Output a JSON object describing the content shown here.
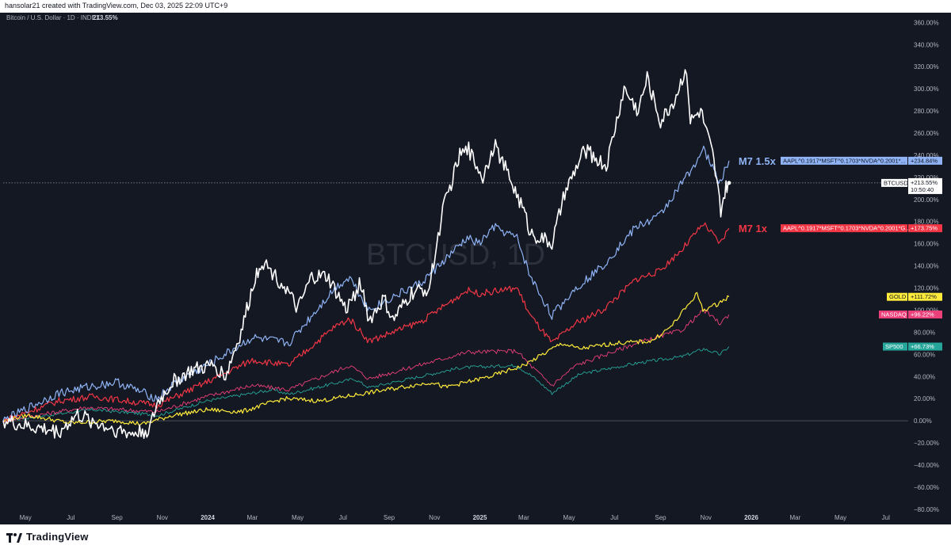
{
  "header": {
    "text": "hansolar21 created with TradingView.com, Dec 03, 2025 22:09 UTC+9"
  },
  "footer": {
    "brand": "TradingView"
  },
  "chart_data": {
    "type": "line",
    "symbol_label": "Bitcoin / U.S. Dollar · 1D · INDEX",
    "symbol_value": "213.55%",
    "watermark": "BTCUSD, 1D",
    "x_ticks": [
      "May",
      "Jul",
      "Sep",
      "Nov",
      "2024",
      "Mar",
      "May",
      "Jul",
      "Sep",
      "Nov",
      "2025",
      "Mar",
      "May",
      "Jul",
      "Sep",
      "Nov",
      "2026",
      "Mar",
      "May",
      "Jul"
    ],
    "y_ticks": [
      "360.00%",
      "340.00%",
      "320.00%",
      "300.00%",
      "280.00%",
      "260.00%",
      "240.00%",
      "220.00%",
      "200.00%",
      "180.00%",
      "160.00%",
      "140.00%",
      "120.00%",
      "100.00%",
      "80.00%",
      "60.00%",
      "40.00%",
      "20.00%",
      "0.00%",
      "−20.00%",
      "−40.00%",
      "−60.00%",
      "−80.00%"
    ],
    "y_range": [
      -88,
      366
    ],
    "x_range": [
      "2023-04-01",
      "2026-07-31"
    ],
    "ylabel": "",
    "grid": false,
    "series": [
      {
        "name": "BTCUSD",
        "color": "#ffffff",
        "value_label": "+213.55%",
        "extra_label": "10:50:40",
        "points": [
          [
            "2023-04-01",
            0
          ],
          [
            "2023-05-01",
            -5
          ],
          [
            "2023-06-15",
            -10
          ],
          [
            "2023-07-10",
            5
          ],
          [
            "2023-08-15",
            -5
          ],
          [
            "2023-09-20",
            -12
          ],
          [
            "2023-10-15",
            -8
          ],
          [
            "2023-10-25",
            15
          ],
          [
            "2023-11-15",
            35
          ],
          [
            "2023-12-10",
            45
          ],
          [
            "2024-01-10",
            50
          ],
          [
            "2024-01-25",
            40
          ],
          [
            "2024-02-15",
            80
          ],
          [
            "2024-03-05",
            130
          ],
          [
            "2024-03-14",
            145
          ],
          [
            "2024-04-15",
            120
          ],
          [
            "2024-05-01",
            100
          ],
          [
            "2024-05-20",
            130
          ],
          [
            "2024-06-10",
            130
          ],
          [
            "2024-07-05",
            100
          ],
          [
            "2024-07-25",
            125
          ],
          [
            "2024-08-05",
            90
          ],
          [
            "2024-08-25",
            110
          ],
          [
            "2024-09-06",
            90
          ],
          [
            "2024-10-01",
            115
          ],
          [
            "2024-10-25",
            120
          ],
          [
            "2024-11-12",
            190
          ],
          [
            "2024-12-05",
            240
          ],
          [
            "2024-12-17",
            245
          ],
          [
            "2025-01-05",
            220
          ],
          [
            "2025-01-20",
            250
          ],
          [
            "2025-02-10",
            220
          ],
          [
            "2025-03-01",
            190
          ],
          [
            "2025-03-10",
            170
          ],
          [
            "2025-04-08",
            160
          ],
          [
            "2025-04-25",
            205
          ],
          [
            "2025-05-22",
            245
          ],
          [
            "2025-06-20",
            230
          ],
          [
            "2025-07-14",
            300
          ],
          [
            "2025-08-02",
            280
          ],
          [
            "2025-08-14",
            310
          ],
          [
            "2025-09-01",
            270
          ],
          [
            "2025-09-20",
            290
          ],
          [
            "2025-10-06",
            320
          ],
          [
            "2025-10-11",
            270
          ],
          [
            "2025-10-25",
            280
          ],
          [
            "2025-11-10",
            240
          ],
          [
            "2025-11-21",
            190
          ],
          [
            "2025-11-28",
            210
          ],
          [
            "2025-12-02",
            215
          ]
        ]
      },
      {
        "name": "M7 1.5x",
        "color": "#8fb3f5",
        "value_label": "+234.84%",
        "ticker": "AAPL^0.1917*MSFT^0.1703*NVDA^0.2001*...",
        "points": [
          [
            "2023-04-01",
            0
          ],
          [
            "2023-05-15",
            15
          ],
          [
            "2023-06-15",
            25
          ],
          [
            "2023-07-20",
            30
          ],
          [
            "2023-09-01",
            35
          ],
          [
            "2023-10-25",
            20
          ],
          [
            "2023-11-20",
            35
          ],
          [
            "2023-12-31",
            50
          ],
          [
            "2024-03-01",
            75
          ],
          [
            "2024-04-19",
            70
          ],
          [
            "2024-06-20",
            120
          ],
          [
            "2024-07-10",
            130
          ],
          [
            "2024-08-05",
            100
          ],
          [
            "2024-09-01",
            110
          ],
          [
            "2024-10-15",
            125
          ],
          [
            "2024-12-15",
            165
          ],
          [
            "2024-12-31",
            160
          ],
          [
            "2025-01-20",
            175
          ],
          [
            "2025-02-20",
            165
          ],
          [
            "2025-03-10",
            130
          ],
          [
            "2025-04-08",
            95
          ],
          [
            "2025-05-10",
            120
          ],
          [
            "2025-06-15",
            140
          ],
          [
            "2025-07-30",
            175
          ],
          [
            "2025-08-30",
            185
          ],
          [
            "2025-09-30",
            215
          ],
          [
            "2025-10-29",
            245
          ],
          [
            "2025-11-20",
            215
          ],
          [
            "2025-12-02",
            235
          ]
        ]
      },
      {
        "name": "M7 1x",
        "color": "#f23645",
        "value_label": "+173.75%",
        "ticker": "AAPL^0.1917*MSFT^0.1703*NVDA^0.2001*G...",
        "points": [
          [
            "2023-04-01",
            0
          ],
          [
            "2023-06-15",
            18
          ],
          [
            "2023-08-01",
            22
          ],
          [
            "2023-10-25",
            14
          ],
          [
            "2023-12-31",
            35
          ],
          [
            "2024-03-01",
            55
          ],
          [
            "2024-04-19",
            50
          ],
          [
            "2024-06-20",
            85
          ],
          [
            "2024-07-10",
            92
          ],
          [
            "2024-08-05",
            72
          ],
          [
            "2024-10-15",
            90
          ],
          [
            "2024-12-15",
            118
          ],
          [
            "2024-12-31",
            115
          ],
          [
            "2025-02-20",
            120
          ],
          [
            "2025-03-10",
            95
          ],
          [
            "2025-04-08",
            70
          ],
          [
            "2025-05-10",
            88
          ],
          [
            "2025-06-15",
            100
          ],
          [
            "2025-07-30",
            128
          ],
          [
            "2025-08-30",
            135
          ],
          [
            "2025-09-30",
            155
          ],
          [
            "2025-10-29",
            178
          ],
          [
            "2025-11-20",
            160
          ],
          [
            "2025-12-02",
            174
          ]
        ]
      },
      {
        "name": "GOLD",
        "color": "#ffeb3b",
        "value_label": "+111.72%",
        "points": [
          [
            "2023-04-01",
            0
          ],
          [
            "2023-05-04",
            5
          ],
          [
            "2023-06-30",
            -2
          ],
          [
            "2023-09-01",
            0
          ],
          [
            "2023-10-06",
            -3
          ],
          [
            "2023-11-15",
            5
          ],
          [
            "2024-01-01",
            10
          ],
          [
            "2024-02-15",
            8
          ],
          [
            "2024-04-12",
            20
          ],
          [
            "2024-06-01",
            18
          ],
          [
            "2024-08-01",
            25
          ],
          [
            "2024-10-30",
            35
          ],
          [
            "2024-11-14",
            30
          ],
          [
            "2025-01-15",
            40
          ],
          [
            "2025-03-01",
            50
          ],
          [
            "2025-04-21",
            70
          ],
          [
            "2025-05-15",
            65
          ],
          [
            "2025-07-01",
            70
          ],
          [
            "2025-08-20",
            72
          ],
          [
            "2025-09-15",
            85
          ],
          [
            "2025-10-20",
            115
          ],
          [
            "2025-10-28",
            100
          ],
          [
            "2025-11-15",
            105
          ],
          [
            "2025-12-02",
            112
          ]
        ]
      },
      {
        "name": "NASDAQ",
        "color": "#ec407a",
        "value_label": "+96.22%",
        "points": [
          [
            "2023-04-01",
            0
          ],
          [
            "2023-07-20",
            12
          ],
          [
            "2023-10-25",
            8
          ],
          [
            "2023-12-31",
            22
          ],
          [
            "2024-03-01",
            32
          ],
          [
            "2024-04-19",
            28
          ],
          [
            "2024-07-10",
            50
          ],
          [
            "2024-08-05",
            38
          ],
          [
            "2024-12-15",
            62
          ],
          [
            "2025-02-20",
            63
          ],
          [
            "2025-03-10",
            50
          ],
          [
            "2025-04-08",
            32
          ],
          [
            "2025-05-10",
            50
          ],
          [
            "2025-07-30",
            70
          ],
          [
            "2025-09-30",
            82
          ],
          [
            "2025-10-29",
            100
          ],
          [
            "2025-11-20",
            88
          ],
          [
            "2025-12-02",
            96
          ]
        ]
      },
      {
        "name": "SP500",
        "color": "#26a69a",
        "value_label": "+66.73%",
        "points": [
          [
            "2023-04-01",
            0
          ],
          [
            "2023-07-31",
            10
          ],
          [
            "2023-10-27",
            5
          ],
          [
            "2023-12-31",
            18
          ],
          [
            "2024-03-28",
            28
          ],
          [
            "2024-04-19",
            24
          ],
          [
            "2024-07-16",
            38
          ],
          [
            "2024-08-05",
            30
          ],
          [
            "2024-12-06",
            48
          ],
          [
            "2025-02-19",
            50
          ],
          [
            "2025-03-13",
            40
          ],
          [
            "2025-04-08",
            25
          ],
          [
            "2025-05-15",
            42
          ],
          [
            "2025-07-31",
            52
          ],
          [
            "2025-09-30",
            58
          ],
          [
            "2025-10-29",
            65
          ],
          [
            "2025-11-20",
            60
          ],
          [
            "2025-12-02",
            67
          ]
        ]
      }
    ],
    "annotations": [
      {
        "text": "M7 1.5x",
        "series": "M7 1.5x"
      },
      {
        "text": "M7 1x",
        "series": "M7 1x"
      }
    ]
  }
}
